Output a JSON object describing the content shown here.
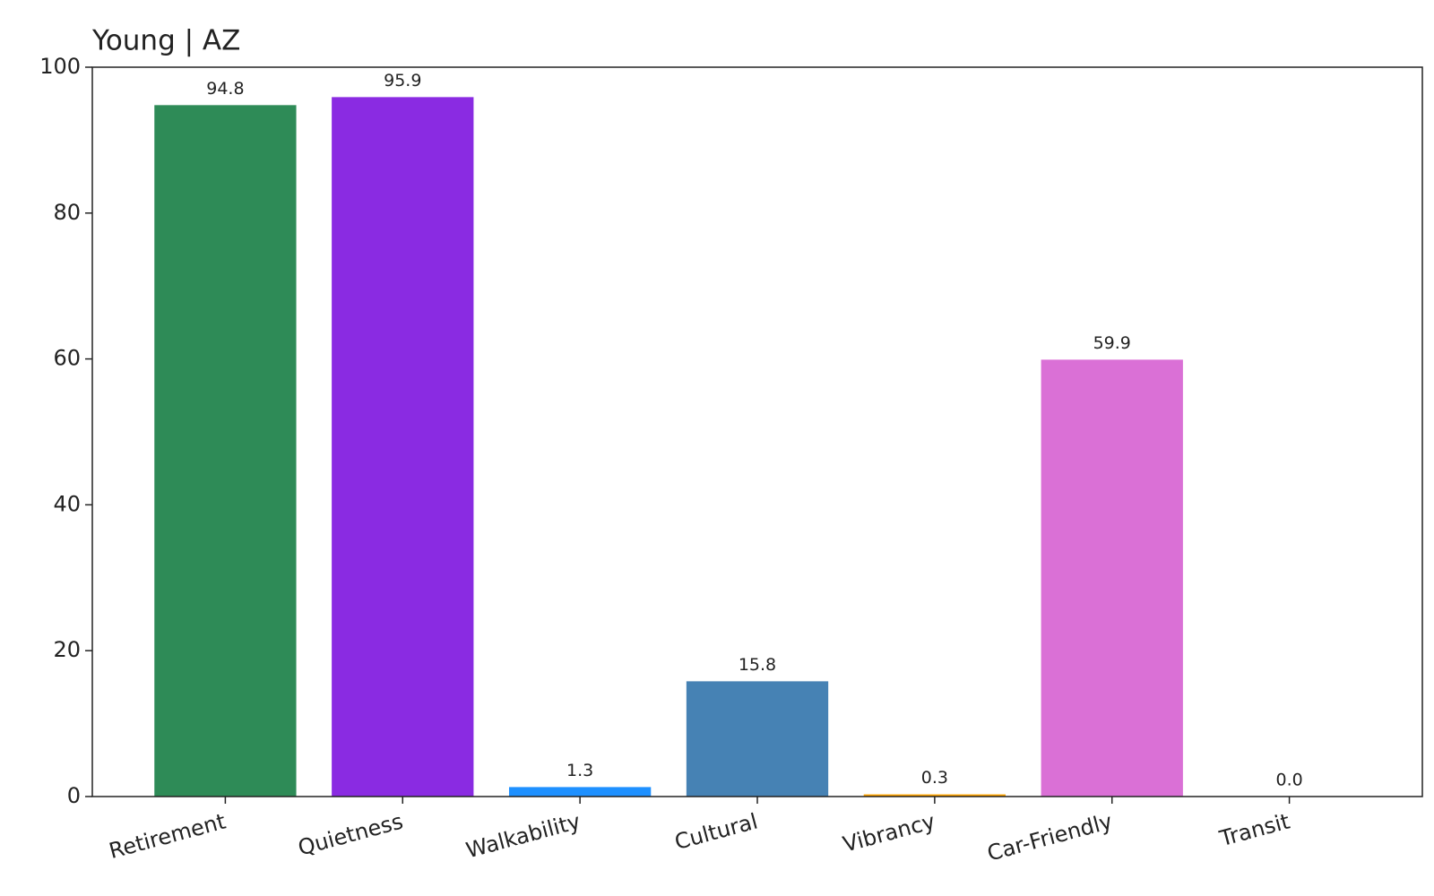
{
  "chart_data": {
    "type": "bar",
    "title": "Young | AZ",
    "categories": [
      "Retirement",
      "Quietness",
      "Walkability",
      "Cultural",
      "Vibrancy",
      "Car-Friendly",
      "Transit"
    ],
    "values": [
      94.8,
      95.9,
      1.3,
      15.8,
      0.3,
      59.9,
      0
    ],
    "value_labels": [
      "94.8",
      "95.9",
      "1.3",
      "15.8",
      "0.3",
      "59.9",
      "0.0"
    ],
    "colors": [
      "#2e8b57",
      "#8a2be2",
      "#1e90ff",
      "#4682b4",
      "#ffa500",
      "#da70d6",
      "#808080"
    ],
    "ylim": [
      0,
      100
    ],
    "yticks": [
      0,
      20,
      40,
      60,
      80,
      100
    ]
  }
}
